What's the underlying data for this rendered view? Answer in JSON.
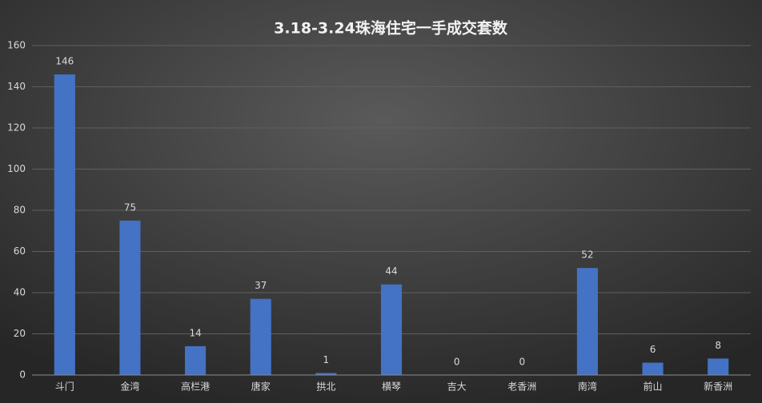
{
  "chart_data": {
    "type": "bar",
    "title": "3.18-3.24珠海住宅一手成交套数",
    "categories": [
      "斗门",
      "金湾",
      "高栏港",
      "唐家",
      "拱北",
      "横琴",
      "吉大",
      "老香洲",
      "南湾",
      "前山",
      "新香洲"
    ],
    "values": [
      146,
      75,
      14,
      37,
      1,
      44,
      0,
      0,
      52,
      6,
      8
    ],
    "color": "#4472c4",
    "ylim": [
      0,
      160
    ],
    "yticks": [
      0,
      20,
      40,
      60,
      80,
      100,
      120,
      140,
      160
    ],
    "grid": true
  }
}
